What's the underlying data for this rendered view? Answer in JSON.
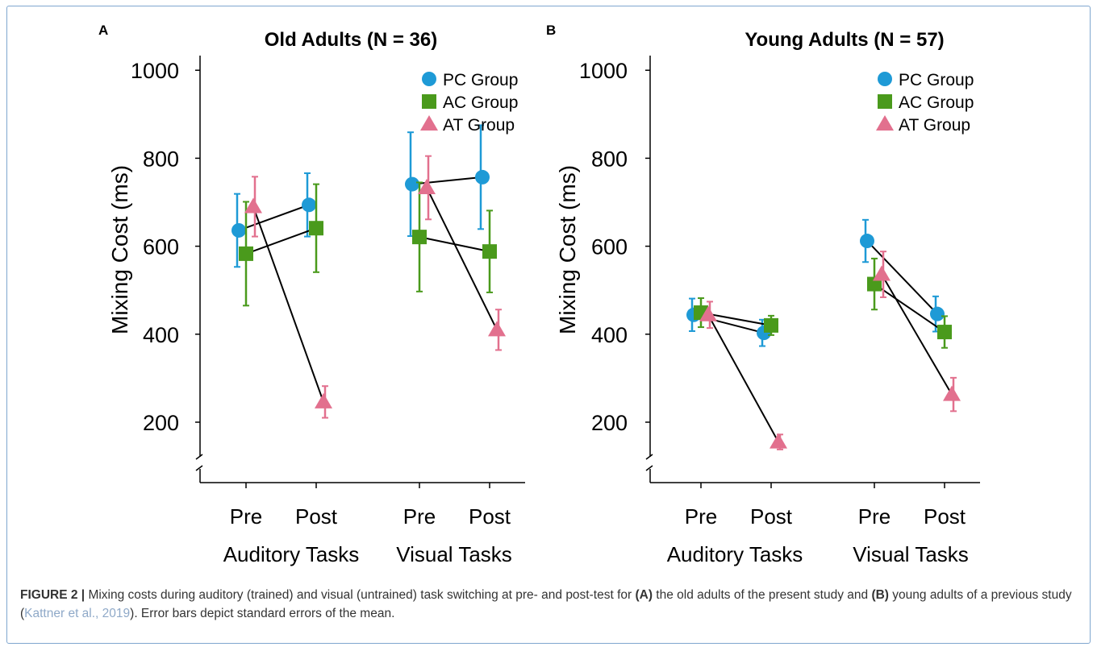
{
  "figure": {
    "caption": {
      "label": "FIGURE 2 |",
      "t1": " Mixing costs during auditory (trained) and visual (untrained) task switching at pre- and post-test for ",
      "b1": "(A)",
      "t2": " the old adults of the present study and ",
      "b2": "(B)",
      "t3": " young adults of a previous study (",
      "cite": "Kattner et al., 2019",
      "t4": "). Error bars depict standard errors of the mean."
    },
    "colors": {
      "pc": "#1e9ad6",
      "ac": "#4a9a1c",
      "at": "#e2708e",
      "line": "#000000"
    }
  },
  "chart_data": [
    {
      "type": "scatter",
      "panel_letter": "A",
      "title": "Old Adults (N = 36)",
      "ylabel": "Mixing Cost (ms)",
      "ylim": [
        100,
        1020
      ],
      "yticks": [
        200,
        400,
        600,
        800,
        1000
      ],
      "axis_break": true,
      "categories": [
        "Pre",
        "Post",
        "Pre",
        "Post"
      ],
      "groups": [
        "Auditory Tasks",
        "Visual Tasks"
      ],
      "legend_position": "top-right",
      "series": [
        {
          "name": "PC Group",
          "marker": "circle",
          "color": "#1e9ad6",
          "values": [
            636,
            694,
            741,
            757
          ],
          "se": [
            83,
            72,
            118,
            118
          ]
        },
        {
          "name": "AC Group",
          "marker": "square",
          "color": "#4a9a1c",
          "values": [
            583,
            641,
            621,
            588
          ],
          "se": [
            118,
            100,
            124,
            93
          ]
        },
        {
          "name": "AT Group",
          "marker": "triangle",
          "color": "#e2708e",
          "values": [
            690,
            246,
            733,
            410
          ],
          "se": [
            68,
            36,
            72,
            46
          ]
        }
      ]
    },
    {
      "type": "scatter",
      "panel_letter": "B",
      "title": "Young Adults (N = 57)",
      "ylabel": "Mixing Cost (ms)",
      "ylim": [
        100,
        1020
      ],
      "yticks": [
        200,
        400,
        600,
        800,
        1000
      ],
      "axis_break": true,
      "categories": [
        "Pre",
        "Post",
        "Pre",
        "Post"
      ],
      "groups": [
        "Auditory Tasks",
        "Visual Tasks"
      ],
      "legend_position": "top-right",
      "series": [
        {
          "name": "PC Group",
          "marker": "circle",
          "color": "#1e9ad6",
          "values": [
            444,
            403,
            612,
            446
          ],
          "se": [
            37,
            30,
            48,
            40
          ]
        },
        {
          "name": "AC Group",
          "marker": "square",
          "color": "#4a9a1c",
          "values": [
            449,
            420,
            514,
            405
          ],
          "se": [
            33,
            22,
            58,
            36
          ]
        },
        {
          "name": "AT Group",
          "marker": "triangle",
          "color": "#e2708e",
          "values": [
            444,
            155,
            536,
            263
          ],
          "se": [
            30,
            17,
            52,
            38
          ]
        }
      ]
    }
  ]
}
